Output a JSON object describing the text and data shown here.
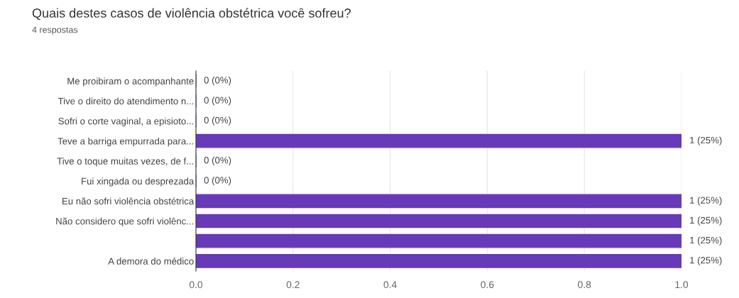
{
  "chart_data": {
    "type": "bar",
    "orientation": "horizontal",
    "title": "Quais destes casos de violência obstétrica você sofreu?",
    "subtitle": "4 respostas",
    "categories": [
      "Me proibiram o acompanhante",
      "Tive o direito do atendimento n...",
      "Sofri o corte vaginal, a episioto...",
      "Teve a barriga empurrada para...",
      "Tive o toque muitas vezes, de f...",
      "Fui xingada ou desprezada",
      "Eu não sofri violência obstétrica",
      "Não considero que sofri violênc...",
      null,
      "A demora do médico"
    ],
    "values": [
      0,
      0,
      0,
      1,
      0,
      0,
      1,
      1,
      1,
      1
    ],
    "value_labels": [
      "0 (0%)",
      "0 (0%)",
      "0 (0%)",
      "1 (25%)",
      "0 (0%)",
      "0 (0%)",
      "1 (25%)",
      "1 (25%)",
      "1 (25%)",
      "1 (25%)"
    ],
    "color": "#673ab7",
    "xlim": [
      0,
      1.0
    ],
    "xticks": [
      {
        "value": 0,
        "label": "0.0"
      },
      {
        "value": 0.2,
        "label": "0.2"
      },
      {
        "value": 0.4,
        "label": "0.4"
      },
      {
        "value": 0.6,
        "label": "0.6"
      },
      {
        "value": 0.8,
        "label": "0.8"
      },
      {
        "value": 1.0,
        "label": "1.0"
      }
    ],
    "grid": "x",
    "legend": false
  }
}
